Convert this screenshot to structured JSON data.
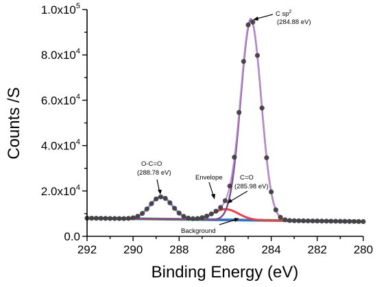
{
  "chart_data": {
    "type": "line",
    "xlabel": "Binding Energy (eV)",
    "ylabel": "Counts /S",
    "xlim": [
      292,
      280
    ],
    "ylim": [
      0,
      100000
    ],
    "x_reversed": true,
    "grid": false,
    "x_ticks": [
      292,
      290,
      288,
      286,
      284,
      282,
      280
    ],
    "x_tick_labels": [
      "292",
      "290",
      "288",
      "286",
      "284",
      "282",
      "280"
    ],
    "y_ticks": [
      0,
      20000,
      40000,
      60000,
      80000,
      100000
    ],
    "y_tick_labels": [
      {
        "base": "0.0",
        "exp": ""
      },
      {
        "base": "2.0x10",
        "exp": "4"
      },
      {
        "base": "4.0x10",
        "exp": "4"
      },
      {
        "base": "6.0x10",
        "exp": "4"
      },
      {
        "base": "8.0x10",
        "exp": "4"
      },
      {
        "base": "1.0x10",
        "exp": "5"
      }
    ],
    "colors": {
      "raw": "#3d3d3d",
      "envelope": "#b98dd0",
      "csp2": "#7e4f8e",
      "c_o": "#e8404a",
      "o_c_o": "#3f6ad8",
      "background": "#1fa062",
      "teal": "#3a9aa6"
    },
    "annotations": {
      "csp2_line1": "C sp",
      "csp2_sup": "2",
      "csp2_line2": "(284.88 eV)",
      "co_line1": "C=O",
      "co_line2": "(285.98 eV)",
      "oco_line1": "O-C=O",
      "oco_line2": "(288.78 eV)",
      "envelope": "Envelope",
      "background": "Background"
    },
    "series": [
      {
        "id": "raw",
        "style": "markers",
        "sample_step": 0.2
      },
      {
        "id": "background",
        "center": null,
        "values_note": "linear baseline",
        "start": 8000,
        "end": 6500
      },
      {
        "id": "o_c_o",
        "center": 288.78,
        "amplitude": 9800,
        "fwhm": 1.15
      },
      {
        "id": "c_o",
        "center": 285.98,
        "amplitude": 4700,
        "fwhm": 1.3
      },
      {
        "id": "csp2",
        "center": 284.88,
        "amplitude": 88300,
        "fwhm": 1.05
      }
    ]
  }
}
